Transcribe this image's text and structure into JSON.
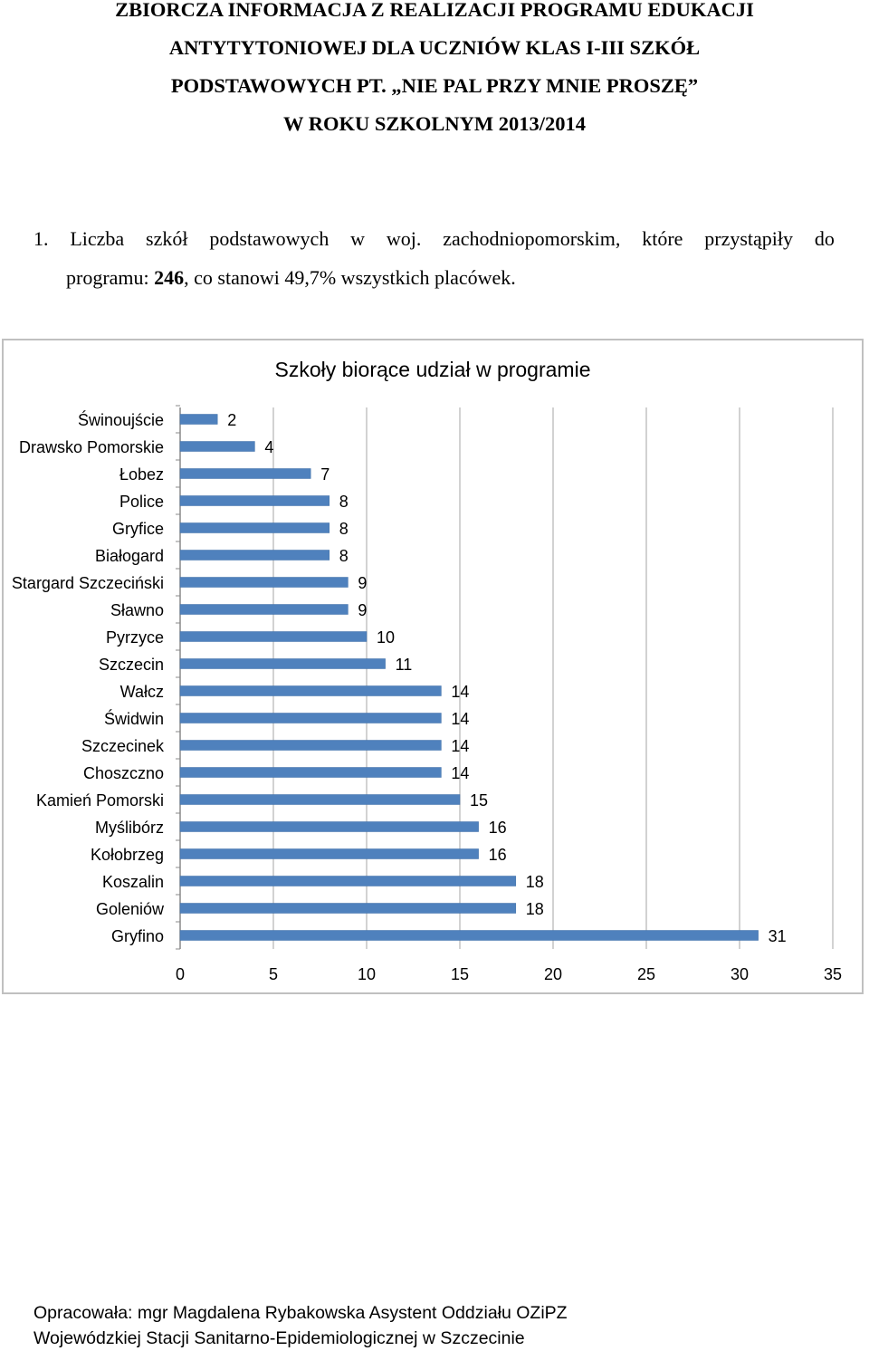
{
  "heading": {
    "line1": "ZBIORCZA INFORMACJA Z REALIZACJI PROGRAMU EDUKACJI",
    "line2": "ANTYTYTONIOWEJ DLA UCZNIÓW KLAS I-III SZKÓŁ",
    "line3": "PODSTAWOWYCH PT. „NIE PAL PRZY MNIE PROSZĘ”",
    "line4": "W ROKU SZKOLNYM 2013/2014"
  },
  "intro": {
    "number": "1.",
    "line1_words": [
      "Liczba",
      "szkół",
      "podstawowych",
      "w",
      "woj.",
      "zachodniopomorskim,",
      "które",
      "przystąpiły",
      "do"
    ],
    "line2_prefix": "programu: ",
    "line2_bold": "246",
    "line2_suffix": ", co stanowi 49,7% wszystkich placówek."
  },
  "chart_data": {
    "type": "bar",
    "orientation": "horizontal",
    "title": "Szkoły biorące udział w programie",
    "categories": [
      "Świnoujście",
      "Drawsko Pomorskie",
      "Łobez",
      "Police",
      "Gryfice",
      "Białogard",
      "Stargard Szczeciński",
      "Sławno",
      "Pyrzyce",
      "Szczecin",
      "Wałcz",
      "Świdwin",
      "Szczecinek",
      "Choszczno",
      "Kamień Pomorski",
      "Myślibórz",
      "Kołobrzeg",
      "Koszalin",
      "Goleniów",
      "Gryfino"
    ],
    "values": [
      2,
      4,
      7,
      8,
      8,
      8,
      9,
      9,
      10,
      11,
      14,
      14,
      14,
      14,
      15,
      16,
      16,
      18,
      18,
      31
    ],
    "xlim": [
      0,
      35
    ],
    "xticks": [
      0,
      5,
      10,
      15,
      20,
      25,
      30,
      35
    ],
    "grid": "vertical",
    "data_labels": true,
    "bar_color": "#4f81bd"
  },
  "footer": {
    "line1": "Opracowała: mgr Magdalena Rybakowska Asystent Oddziału OZiPZ",
    "line2": "Wojewódzkiej Stacji Sanitarno-Epidemiologicznej w Szczecinie"
  }
}
